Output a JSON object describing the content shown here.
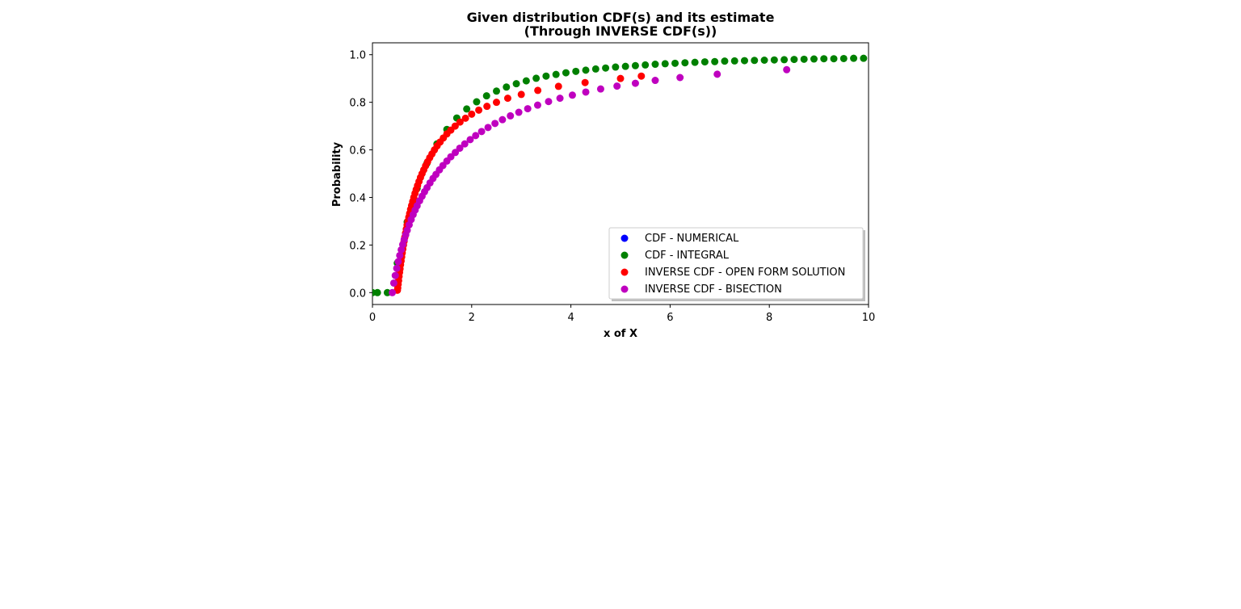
{
  "chart_data": {
    "type": "scatter",
    "title": "Given distribution CDF(s) and its estimate",
    "subtitle": "(Through INVERSE CDF(s))",
    "xlabel": "x of X",
    "ylabel": "Probability",
    "xlim": [
      0,
      10
    ],
    "ylim": [
      -0.05,
      1.05
    ],
    "xticks": [
      0,
      2,
      4,
      6,
      8,
      10
    ],
    "yticks": [
      0.0,
      0.2,
      0.4,
      0.6,
      0.8,
      1.0
    ],
    "xtick_labels": [
      "0",
      "2",
      "4",
      "6",
      "8",
      "10"
    ],
    "ytick_labels": [
      "0.0",
      "0.2",
      "0.4",
      "0.6",
      "0.8",
      "1.0"
    ],
    "grid": false,
    "legend_position": "lower-right",
    "series": [
      {
        "name": "CDF - NUMERICAL",
        "color": "#0000ff",
        "x": [],
        "y": []
      },
      {
        "name": "CDF - INTEGRAL",
        "color": "#008000",
        "x": [
          0.0,
          0.1,
          0.3,
          0.5,
          0.7,
          0.9,
          1.1,
          1.3,
          1.5,
          1.7,
          1.9,
          2.1,
          2.3,
          2.5,
          2.7,
          2.9,
          3.1,
          3.3,
          3.5,
          3.7,
          3.9,
          4.1,
          4.3,
          4.5,
          4.7,
          4.9,
          5.1,
          5.3,
          5.5,
          5.7,
          5.9,
          6.1,
          6.3,
          6.5,
          6.7,
          6.9,
          7.1,
          7.3,
          7.5,
          7.7,
          7.9,
          8.1,
          8.3,
          8.5,
          8.7,
          8.9,
          9.1,
          9.3,
          9.5,
          9.7,
          9.9
        ],
        "y": [
          0.0,
          0.0,
          0.0,
          0.124,
          0.297,
          0.438,
          0.544,
          0.625,
          0.686,
          0.734,
          0.772,
          0.802,
          0.827,
          0.847,
          0.864,
          0.878,
          0.89,
          0.901,
          0.91,
          0.917,
          0.924,
          0.93,
          0.935,
          0.94,
          0.944,
          0.948,
          0.951,
          0.954,
          0.957,
          0.96,
          0.962,
          0.964,
          0.966,
          0.968,
          0.97,
          0.971,
          0.973,
          0.974,
          0.975,
          0.976,
          0.977,
          0.978,
          0.979,
          0.98,
          0.981,
          0.982,
          0.983,
          0.983,
          0.984,
          0.985,
          0.985
        ]
      },
      {
        "name": "INVERSE CDF - OPEN FORM SOLUTION",
        "color": "#ff0000",
        "x": [
          0.503,
          0.51,
          0.518,
          0.527,
          0.536,
          0.546,
          0.556,
          0.566,
          0.577,
          0.588,
          0.6,
          0.612,
          0.625,
          0.638,
          0.652,
          0.667,
          0.682,
          0.698,
          0.714,
          0.732,
          0.75,
          0.769,
          0.789,
          0.811,
          0.833,
          0.857,
          0.882,
          0.909,
          0.938,
          0.968,
          1.0,
          1.034,
          1.071,
          1.111,
          1.154,
          1.2,
          1.25,
          1.304,
          1.364,
          1.429,
          1.5,
          1.579,
          1.667,
          1.765,
          1.875,
          2.0,
          2.143,
          2.308,
          2.5,
          2.727,
          3.0,
          3.333,
          3.75,
          4.286,
          5.0,
          5.42
        ],
        "y": [
          0.01,
          0.02,
          0.035,
          0.05,
          0.068,
          0.085,
          0.1,
          0.117,
          0.133,
          0.15,
          0.167,
          0.183,
          0.2,
          0.216,
          0.233,
          0.25,
          0.267,
          0.284,
          0.3,
          0.317,
          0.333,
          0.35,
          0.366,
          0.383,
          0.4,
          0.417,
          0.433,
          0.45,
          0.467,
          0.484,
          0.5,
          0.516,
          0.533,
          0.55,
          0.567,
          0.583,
          0.6,
          0.617,
          0.633,
          0.65,
          0.667,
          0.683,
          0.7,
          0.717,
          0.733,
          0.75,
          0.767,
          0.783,
          0.8,
          0.817,
          0.833,
          0.85,
          0.867,
          0.883,
          0.9,
          0.91
        ]
      },
      {
        "name": "INVERSE CDF - BISECTION",
        "color": "#bf00bf",
        "x": [
          0.4,
          0.43,
          0.46,
          0.49,
          0.52,
          0.55,
          0.58,
          0.61,
          0.64,
          0.67,
          0.7,
          0.74,
          0.78,
          0.82,
          0.86,
          0.9,
          0.95,
          1.0,
          1.05,
          1.1,
          1.16,
          1.22,
          1.28,
          1.35,
          1.42,
          1.5,
          1.58,
          1.67,
          1.76,
          1.86,
          1.97,
          2.08,
          2.2,
          2.33,
          2.47,
          2.62,
          2.78,
          2.95,
          3.13,
          3.33,
          3.55,
          3.78,
          4.03,
          4.3,
          4.6,
          4.93,
          5.3,
          5.7,
          6.2,
          6.95,
          8.35
        ],
        "y": [
          0.0,
          0.04,
          0.072,
          0.102,
          0.13,
          0.156,
          0.18,
          0.202,
          0.223,
          0.243,
          0.262,
          0.285,
          0.307,
          0.328,
          0.347,
          0.365,
          0.386,
          0.405,
          0.424,
          0.441,
          0.461,
          0.48,
          0.497,
          0.516,
          0.534,
          0.553,
          0.571,
          0.589,
          0.607,
          0.625,
          0.643,
          0.66,
          0.677,
          0.694,
          0.711,
          0.727,
          0.743,
          0.758,
          0.773,
          0.788,
          0.803,
          0.817,
          0.83,
          0.843,
          0.856,
          0.868,
          0.88,
          0.892,
          0.904,
          0.918,
          0.937
        ]
      }
    ]
  }
}
